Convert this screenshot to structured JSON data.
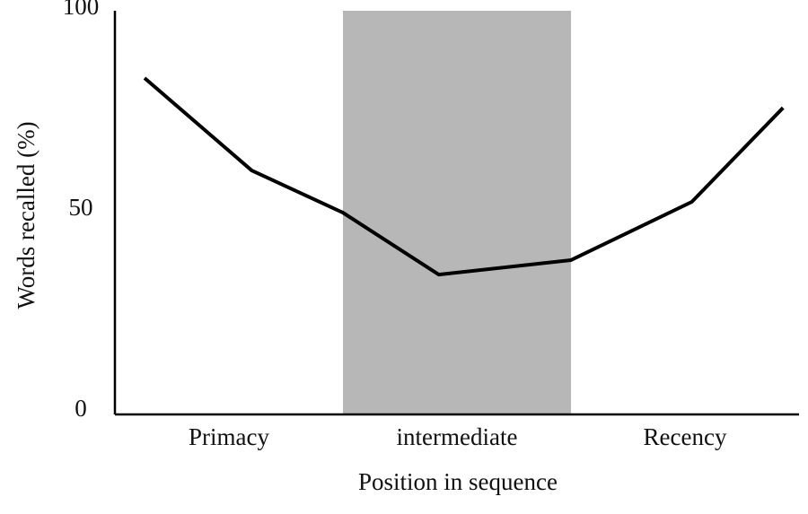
{
  "chart_data": {
    "type": "line",
    "y_label": "Words recalled (%)",
    "x_label": "Position in sequence",
    "categories": [
      "Primacy",
      "intermediate",
      "Recency"
    ],
    "xlim": [
      0,
      3
    ],
    "shaded": [
      1,
      2
    ],
    "shaded_color": "#b7b7b7",
    "x": [
      0.13,
      0.6,
      1.0,
      1.42,
      2.0,
      2.53,
      2.93
    ],
    "series": [
      {
        "color": "#000000",
        "values": [
          83.7,
          60.7,
          50.2,
          34.8,
          38.4,
          52.9,
          76.3
        ]
      }
    ],
    "ylim": [
      0,
      100
    ],
    "yticks": [
      0,
      50,
      100
    ],
    "grid": false
  }
}
